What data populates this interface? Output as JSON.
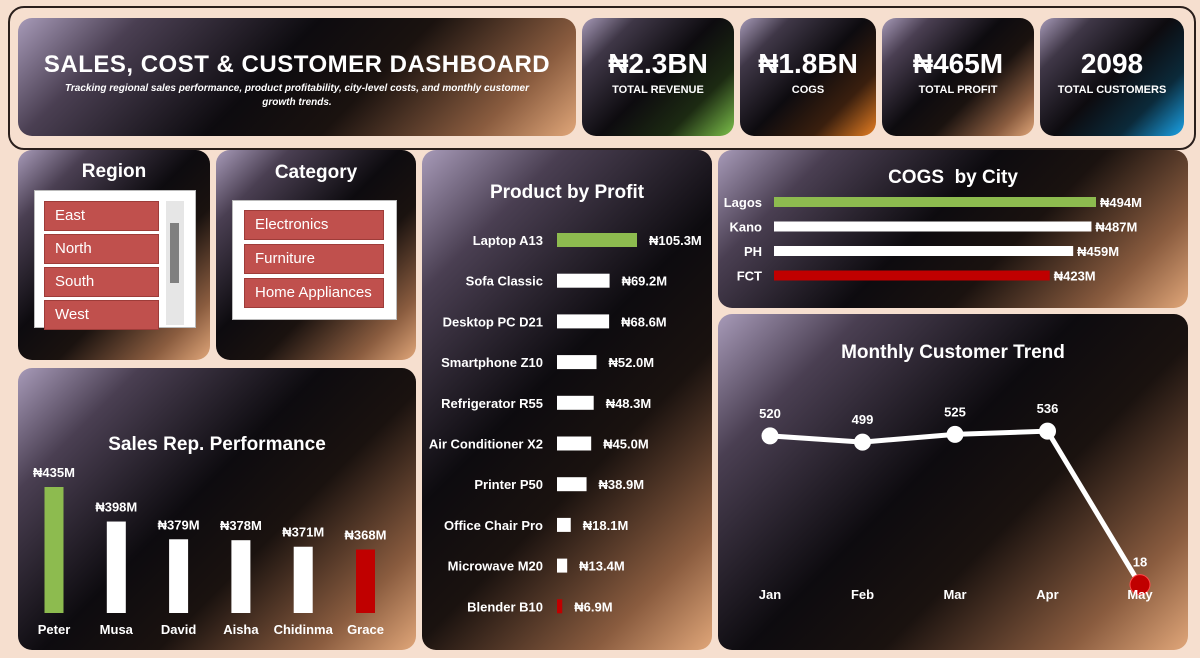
{
  "header": {
    "title": "SALES, COST & CUSTOMER DASHBOARD",
    "subtitle": "Tracking regional sales performance, product profitability, city-level costs, and monthly customer growth trends."
  },
  "kpis": [
    {
      "value": "₦2.3BN",
      "label": "TOTAL REVENUE",
      "accent": "#7cc04a"
    },
    {
      "value": "₦1.8BN",
      "label": "COGS",
      "accent": "#e67e22"
    },
    {
      "value": "₦465M",
      "label": "TOTAL PROFIT",
      "accent": "#d99b6c"
    },
    {
      "value": "2098",
      "label": "TOTAL CUSTOMERS",
      "accent": "#1aa3e8"
    }
  ],
  "slicers": {
    "region": {
      "title": "Region",
      "items": [
        "East",
        "North",
        "South",
        "West"
      ]
    },
    "category": {
      "title": "Category",
      "items": [
        "Electronics",
        "Furniture",
        "Home Appliances"
      ]
    }
  },
  "colors": {
    "highlight": "#8dbb4f",
    "low": "#c00000",
    "bar": "#ffffff",
    "slicer_item": "#c0504d"
  },
  "chart_data": [
    {
      "type": "bar",
      "title": "Product by Profit",
      "orientation": "horizontal",
      "categories": [
        "Laptop A13",
        "Sofa Classic",
        "Desktop PC D21",
        "Smartphone Z10",
        "Refrigerator R55",
        "Air Conditioner X2",
        "Printer P50",
        "Office Chair Pro",
        "Microwave M20",
        "Blender B10"
      ],
      "values": [
        105.3,
        69.2,
        68.6,
        52.0,
        48.3,
        45.0,
        38.9,
        18.1,
        13.4,
        6.9
      ],
      "labels": [
        "₦105.3M",
        "₦69.2M",
        "₦68.6M",
        "₦52.0M",
        "₦48.3M",
        "₦45.0M",
        "₦38.9M",
        "₦18.1M",
        "₦13.4M",
        "₦6.9M"
      ]
    },
    {
      "type": "bar",
      "title": "COGS  by City",
      "orientation": "horizontal",
      "categories": [
        "Lagos",
        "Kano",
        "PH",
        "FCT"
      ],
      "values": [
        494,
        487,
        459,
        423
      ],
      "labels": [
        "₦494M",
        "₦487M",
        "₦459M",
        "₦423M"
      ]
    },
    {
      "type": "bar",
      "title": "Sales Rep. Performance",
      "orientation": "vertical",
      "categories": [
        "Peter",
        "Musa",
        "David",
        "Aisha",
        "Chidinma",
        "Grace"
      ],
      "values": [
        435,
        398,
        379,
        378,
        371,
        368
      ],
      "labels": [
        "₦435M",
        "₦398M",
        "₦379M",
        "₦378M",
        "₦371M",
        "₦368M"
      ]
    },
    {
      "type": "line",
      "title": "Monthly Customer Trend",
      "categories": [
        "Jan",
        "Feb",
        "Mar",
        "Apr",
        "May"
      ],
      "values": [
        520,
        499,
        525,
        536,
        18
      ],
      "labels": [
        "520",
        "499",
        "525",
        "536",
        "18"
      ]
    }
  ]
}
